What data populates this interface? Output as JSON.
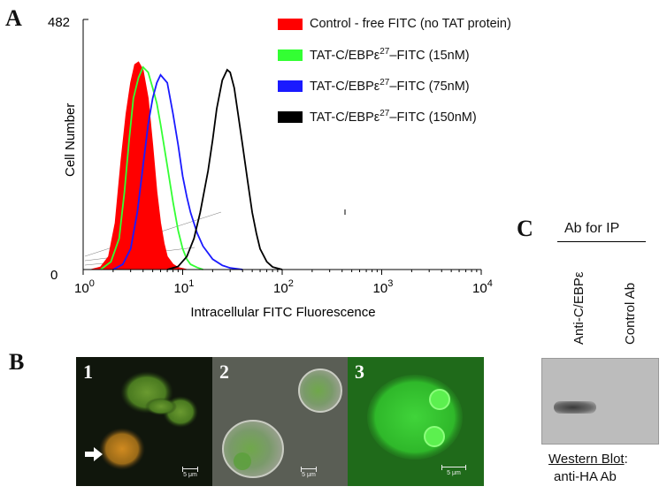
{
  "panels": {
    "a": "A",
    "b": "B",
    "c": "C"
  },
  "histogram": {
    "ymax_label": "482",
    "ymin_label": "0",
    "ylabel": "Cell Number",
    "xlabel": "Intracellular FITC Fluorescence",
    "x_tick_base": "10",
    "x_tick_exps": [
      "0",
      "1",
      "2",
      "3",
      "4"
    ]
  },
  "chart_data": {
    "type": "area",
    "xscale": "log",
    "xlim": [
      1,
      10000
    ],
    "ylim": [
      0,
      482
    ],
    "xlabel": "Intracellular FITC Fluorescence",
    "ylabel": "Cell Number",
    "legend_position": "top-right",
    "series": [
      {
        "name": "Control - free FITC (no TAT protein)",
        "color": "#ff0000",
        "filled": true,
        "x": [
          1.2,
          1.5,
          1.8,
          2.1,
          2.4,
          2.7,
          3.0,
          3.3,
          3.6,
          4.0,
          4.5,
          5.0,
          5.5,
          6.0,
          6.5,
          7.0,
          8.0,
          9.0,
          10.0,
          11.0
        ],
        "y": [
          0,
          5,
          25,
          90,
          210,
          300,
          360,
          395,
          400,
          385,
          330,
          240,
          150,
          90,
          50,
          25,
          10,
          4,
          2,
          0
        ]
      },
      {
        "name": "TAT-C/EBPε27–FITC (15nM)",
        "color": "#33ff33",
        "filled": false,
        "x": [
          1.5,
          1.9,
          2.3,
          2.6,
          2.9,
          3.2,
          3.6,
          4.0,
          4.5,
          5.0,
          5.5,
          6.0,
          7.0,
          8.0,
          9.0,
          10.0,
          11.0,
          12.0,
          14.0,
          16.0
        ],
        "y": [
          0,
          15,
          60,
          150,
          250,
          330,
          370,
          390,
          380,
          350,
          320,
          280,
          200,
          130,
          75,
          40,
          20,
          10,
          4,
          0
        ]
      },
      {
        "name": "TAT-C/EBPε27–FITC (75nM)",
        "color": "#1a1aff",
        "filled": false,
        "x": [
          2.0,
          2.5,
          3.0,
          3.5,
          4.0,
          4.5,
          5.0,
          5.5,
          6.0,
          7.0,
          8.0,
          9.0,
          10.0,
          11.0,
          12.0,
          14.0,
          16.0,
          20.0,
          25.0,
          30.0,
          40.0
        ],
        "y": [
          0,
          10,
          40,
          110,
          200,
          280,
          330,
          360,
          375,
          360,
          300,
          240,
          180,
          140,
          110,
          70,
          45,
          20,
          8,
          3,
          0
        ]
      },
      {
        "name": "TAT-C/EBPε27–FITC (150nM)",
        "color": "#000000",
        "filled": false,
        "x": [
          7.0,
          9.0,
          11.0,
          13.0,
          15.0,
          18.0,
          20.0,
          22.0,
          25.0,
          28.0,
          30.0,
          33.0,
          36.0,
          40.0,
          45.0,
          50.0,
          55.0,
          60.0,
          70.0,
          80.0,
          100.0
        ],
        "y": [
          0,
          6,
          25,
          60,
          110,
          190,
          250,
          310,
          365,
          385,
          380,
          350,
          300,
          240,
          170,
          110,
          70,
          40,
          15,
          5,
          0
        ]
      }
    ]
  },
  "micrographs": {
    "frames": [
      {
        "num": "1",
        "scale": "5 μm"
      },
      {
        "num": "2",
        "scale": "5 μm"
      },
      {
        "num": "3",
        "scale": "5 μm"
      }
    ]
  },
  "ip": {
    "header": "Ab for IP",
    "lane1": "Anti-C/EBPε",
    "lane2": "Control Ab",
    "caption_top": "Western Blot",
    "caption_colon": ":",
    "caption_bottom": "anti-HA Ab"
  }
}
